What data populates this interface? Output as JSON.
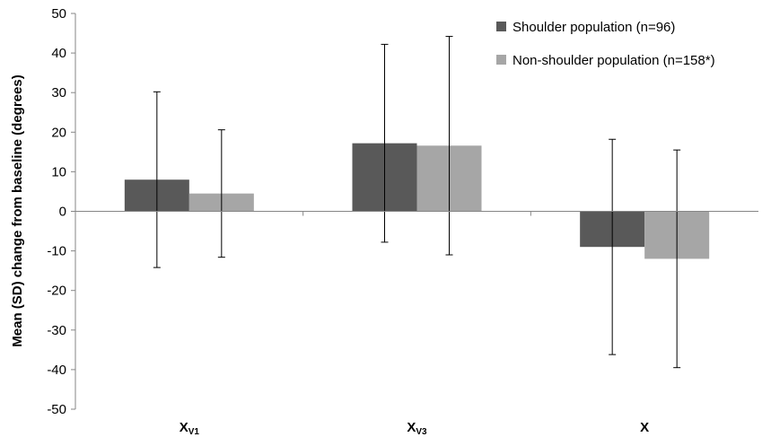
{
  "chart_data": {
    "type": "bar",
    "categories": [
      {
        "main": "X",
        "sub": "V1"
      },
      {
        "main": "X",
        "sub": "V3"
      },
      {
        "main": "X",
        "sub": ""
      }
    ],
    "series": [
      {
        "name": "Shoulder population (n=96)",
        "color": "#595959",
        "values": [
          8,
          17.2,
          -9
        ],
        "errors": [
          22.2,
          25,
          27.2
        ]
      },
      {
        "name": "Non-shoulder population (n=158*)",
        "color": "#a6a6a6",
        "values": [
          4.5,
          16.6,
          -12
        ],
        "errors": [
          16.1,
          27.6,
          27.5
        ]
      }
    ],
    "ylabel": "Mean (SD) change from baseline (degrees)",
    "ylim": [
      -50,
      50
    ],
    "yticks": [
      50,
      40,
      30,
      20,
      10,
      0,
      -10,
      -20,
      -30,
      -40,
      -50
    ],
    "legend_position": "top-right",
    "grid": false
  }
}
